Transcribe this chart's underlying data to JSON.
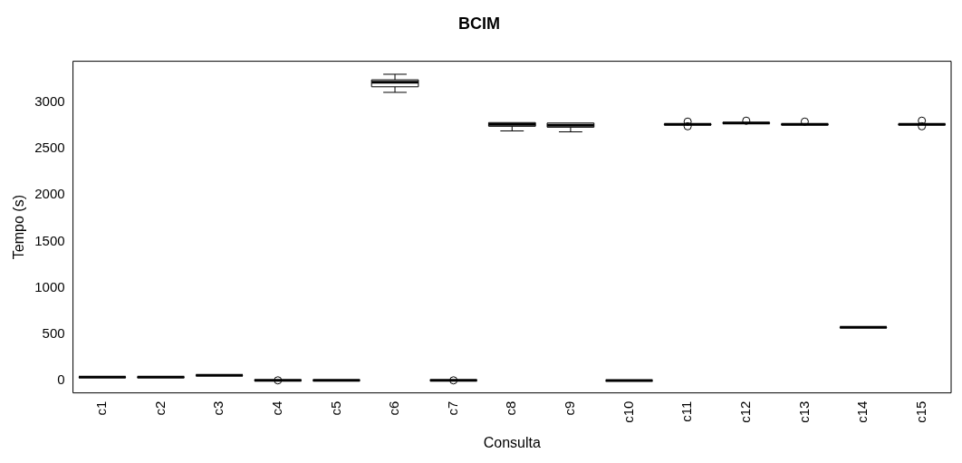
{
  "chart_data": {
    "type": "box",
    "title": "BCIM",
    "xlabel": "Consulta",
    "ylabel": "Tempo (s)",
    "categories": [
      "c1",
      "c2",
      "c3",
      "c4",
      "c5",
      "c6",
      "c7",
      "c8",
      "c9",
      "c10",
      "c11",
      "c12",
      "c13",
      "c14",
      "c15"
    ],
    "ylim": [
      -130,
      3440
    ],
    "yticks": [
      0,
      500,
      1000,
      1500,
      2000,
      2500,
      3000
    ],
    "boxes": [
      {
        "low": 38,
        "q1": 38,
        "median": 40,
        "q3": 42,
        "high": 42
      },
      {
        "low": 38,
        "q1": 38,
        "median": 40,
        "q3": 42,
        "high": 42
      },
      {
        "low": 58,
        "q1": 58,
        "median": 60,
        "q3": 62,
        "high": 62
      },
      {
        "low": 2,
        "q1": 2,
        "median": 5,
        "q3": 7,
        "high": 7,
        "outliers": [
          5
        ]
      },
      {
        "low": 2,
        "q1": 2,
        "median": 5,
        "q3": 7,
        "high": 7
      },
      {
        "low": 3105,
        "q1": 3165,
        "median": 3215,
        "q3": 3240,
        "high": 3300
      },
      {
        "low": 2,
        "q1": 2,
        "median": 5,
        "q3": 7,
        "high": 7,
        "outliers": [
          5
        ]
      },
      {
        "low": 2690,
        "q1": 2740,
        "median": 2760,
        "q3": 2780,
        "high": 2780
      },
      {
        "low": 2680,
        "q1": 2730,
        "median": 2750,
        "q3": 2775,
        "high": 2775
      },
      {
        "low": 1,
        "q1": 1,
        "median": 2,
        "q3": 3,
        "high": 3
      },
      {
        "low": 2755,
        "q1": 2755,
        "median": 2760,
        "q3": 2765,
        "high": 2765,
        "outliers": [
          2740,
          2790
        ]
      },
      {
        "low": 2770,
        "q1": 2770,
        "median": 2775,
        "q3": 2780,
        "high": 2780,
        "outliers": [
          2800
        ]
      },
      {
        "low": 2755,
        "q1": 2755,
        "median": 2760,
        "q3": 2765,
        "high": 2765,
        "outliers": [
          2790
        ]
      },
      {
        "low": 572,
        "q1": 572,
        "median": 575,
        "q3": 577,
        "high": 577
      },
      {
        "low": 2755,
        "q1": 2755,
        "median": 2760,
        "q3": 2765,
        "high": 2765,
        "outliers": [
          2740,
          2800
        ]
      }
    ]
  }
}
